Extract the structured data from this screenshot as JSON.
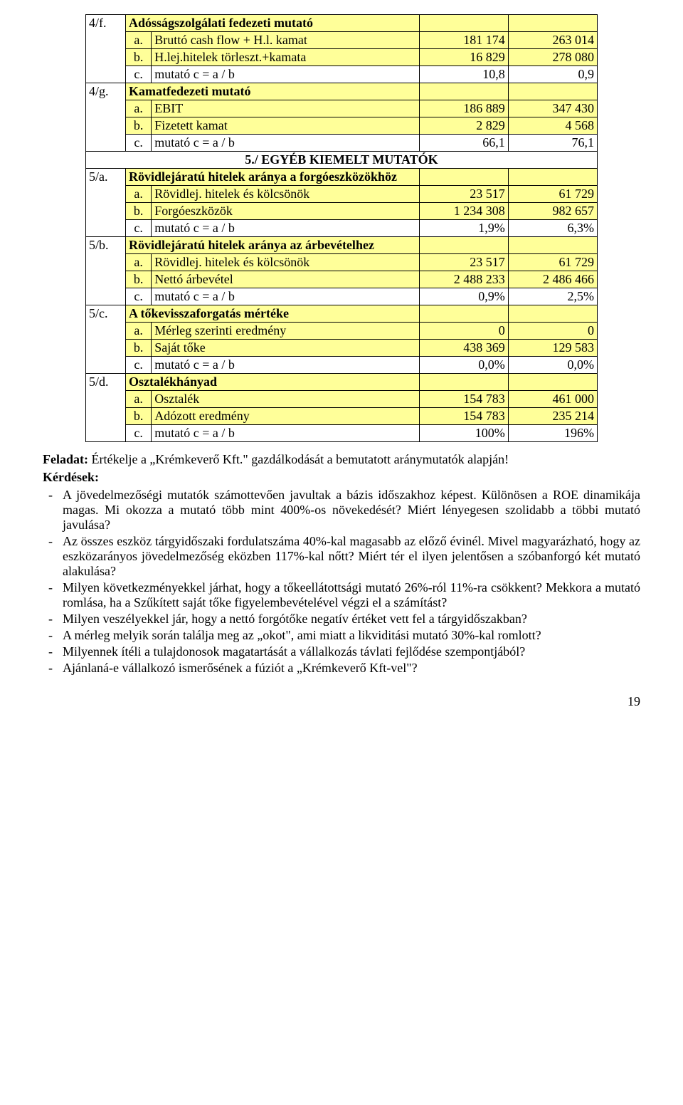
{
  "colors": {
    "highlight": "#ffff99",
    "background": "#ffffff",
    "border": "#000000",
    "text": "#000000"
  },
  "table": {
    "groups": [
      {
        "id": "4/f.",
        "header": {
          "label": "Adósságszolgálati fedezeti mutató",
          "v1": "",
          "v2": ""
        },
        "rows": [
          {
            "letter": "a.",
            "label": "Bruttó cash flow + H.l. kamat",
            "v1": "181 174",
            "v2": "263 014",
            "fill": "yellow"
          },
          {
            "letter": "b.",
            "label": "H.lej.hitelek törleszt.+kamata",
            "v1": "16 829",
            "v2": "278 080",
            "fill": "yellow"
          },
          {
            "letter": "c.",
            "label": "mutató    c = a / b",
            "v1": "10,8",
            "v2": "0,9",
            "fill": "white"
          }
        ]
      },
      {
        "id": "4/g.",
        "header": {
          "label": "Kamatfedezeti mutató",
          "v1": "",
          "v2": ""
        },
        "rows": [
          {
            "letter": "a.",
            "label": "EBIT",
            "v1": "186 889",
            "v2": "347 430",
            "fill": "yellow"
          },
          {
            "letter": "b.",
            "label": "Fizetett kamat",
            "v1": "2 829",
            "v2": "4 568",
            "fill": "yellow"
          },
          {
            "letter": "c.",
            "label": "mutató    c = a / b",
            "v1": "66,1",
            "v2": "76,1",
            "fill": "white"
          }
        ]
      }
    ],
    "section_title": "5./ EGYÉB KIEMELT MUTATÓK",
    "groups2": [
      {
        "id": "5/a.",
        "header": {
          "label": "Rövidlejáratú hitelek aránya a forgóeszközökhöz",
          "v1": "",
          "v2": ""
        },
        "rows": [
          {
            "letter": "a.",
            "label": "Rövidlej. hitelek és kölcsönök",
            "v1": "23 517",
            "v2": "61 729",
            "fill": "yellow"
          },
          {
            "letter": "b.",
            "label": "Forgóeszközök",
            "v1": "1 234 308",
            "v2": "982 657",
            "fill": "yellow"
          },
          {
            "letter": "c.",
            "label": "mutató    c = a / b",
            "v1": "1,9%",
            "v2": "6,3%",
            "fill": "white"
          }
        ]
      },
      {
        "id": "5/b.",
        "header": {
          "label": "Rövidlejáratú hitelek aránya az árbevételhez",
          "v1": "",
          "v2": ""
        },
        "rows": [
          {
            "letter": "a.",
            "label": "Rövidlej. hitelek és kölcsönök",
            "v1": "23 517",
            "v2": "61 729",
            "fill": "yellow"
          },
          {
            "letter": "b.",
            "label": "Nettó árbevétel",
            "v1": "2 488 233",
            "v2": "2 486 466",
            "fill": "yellow"
          },
          {
            "letter": "c.",
            "label": "mutató    c = a / b",
            "v1": "0,9%",
            "v2": "2,5%",
            "fill": "white"
          }
        ]
      },
      {
        "id": "5/c.",
        "header": {
          "label": "A tőkevisszaforgatás mértéke",
          "v1": "",
          "v2": ""
        },
        "rows": [
          {
            "letter": "a.",
            "label": "Mérleg szerinti eredmény",
            "v1": "0",
            "v2": "0",
            "fill": "yellow"
          },
          {
            "letter": "b.",
            "label": "Saját tőke",
            "v1": "438 369",
            "v2": "129 583",
            "fill": "yellow"
          },
          {
            "letter": "c.",
            "label": "mutató    c = a / b",
            "v1": "0,0%",
            "v2": "0,0%",
            "fill": "white"
          }
        ]
      },
      {
        "id": "5/d.",
        "header": {
          "label": "Osztalékhányad",
          "v1": "",
          "v2": ""
        },
        "rows": [
          {
            "letter": "a.",
            "label": "Osztalék",
            "v1": "154 783",
            "v2": "461 000",
            "fill": "yellow"
          },
          {
            "letter": "b.",
            "label": "Adózott eredmény",
            "v1": "154 783",
            "v2": "235 214",
            "fill": "yellow"
          },
          {
            "letter": "c.",
            "label": "mutató    c = a / b",
            "v1": "100%",
            "v2": "196%",
            "fill": "white"
          }
        ]
      }
    ]
  },
  "body": {
    "task_label": "Feladat:",
    "task_text": " Értékelje a „Krémkeverő Kft.\" gazdálkodását a bemutatott aránymutatók alapján!",
    "questions_label": "Kérdések:",
    "questions": [
      "A jövedelmezőségi mutatók számottevően javultak a bázis időszakhoz képest. Különösen a ROE dinamikája magas. Mi okozza a mutató több mint 400%-os növekedését? Miért lényegesen szolidabb a többi mutató javulása?",
      "Az összes eszköz tárgyidőszaki fordulatszáma 40%-kal magasabb az előző évinél. Mivel magyarázható, hogy az eszközarányos jövedelmezőség eközben 117%-kal nőtt? Miért tér el ilyen jelentősen a szóbanforgó két mutató alakulása?",
      "Milyen következményekkel járhat, hogy a tőkeellátottsági mutató 26%-ról 11%-ra csökkent? Mekkora a mutató romlása, ha a Szűkített saját tőke figyelembevételével végzi el a számítást?",
      "Milyen veszélyekkel jár, hogy a nettó forgótőke negatív értéket vett fel a tárgyidőszakban?",
      "A mérleg melyik során találja meg az „okot\", ami miatt a likviditási mutató 30%-kal romlott?",
      "Milyennek ítéli a tulajdonosok magatartását a vállalkozás távlati fejlődése szempontjából?",
      "Ajánlaná-e vállalkozó ismerősének a fúziót a „Krémkeverő Kft-vel\"?"
    ]
  },
  "page_number": "19"
}
